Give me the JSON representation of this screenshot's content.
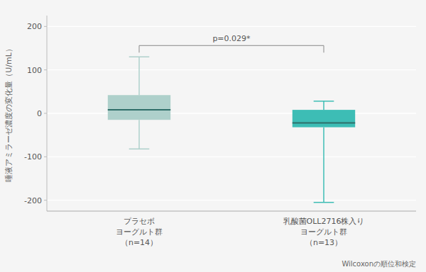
{
  "chart_data": {
    "type": "box",
    "y_label": "唾液アミラーゼ濃度の変化量（U/mL）",
    "categories": [
      "プラセボ\nヨーグルト群\n（n=14）",
      "乳酸菌OLL2716株入り\nヨーグルト群\n（n=13）"
    ],
    "boxes": [
      {
        "q1": -15,
        "median": 8,
        "q3": 42,
        "whisker_low": -82,
        "whisker_high": 130
      },
      {
        "q1": -32,
        "median": -22,
        "q3": 8,
        "whisker_low": -205,
        "whisker_high": 28
      }
    ],
    "colors": [
      "#aed0cb",
      "#3dbdb5"
    ],
    "ylim": [
      -225,
      225
    ],
    "yticks": [
      -200,
      -100,
      0,
      100,
      200
    ],
    "grid": true,
    "annotations": [
      "p=0.029*",
      "Wilcoxonの順位和検定"
    ]
  }
}
